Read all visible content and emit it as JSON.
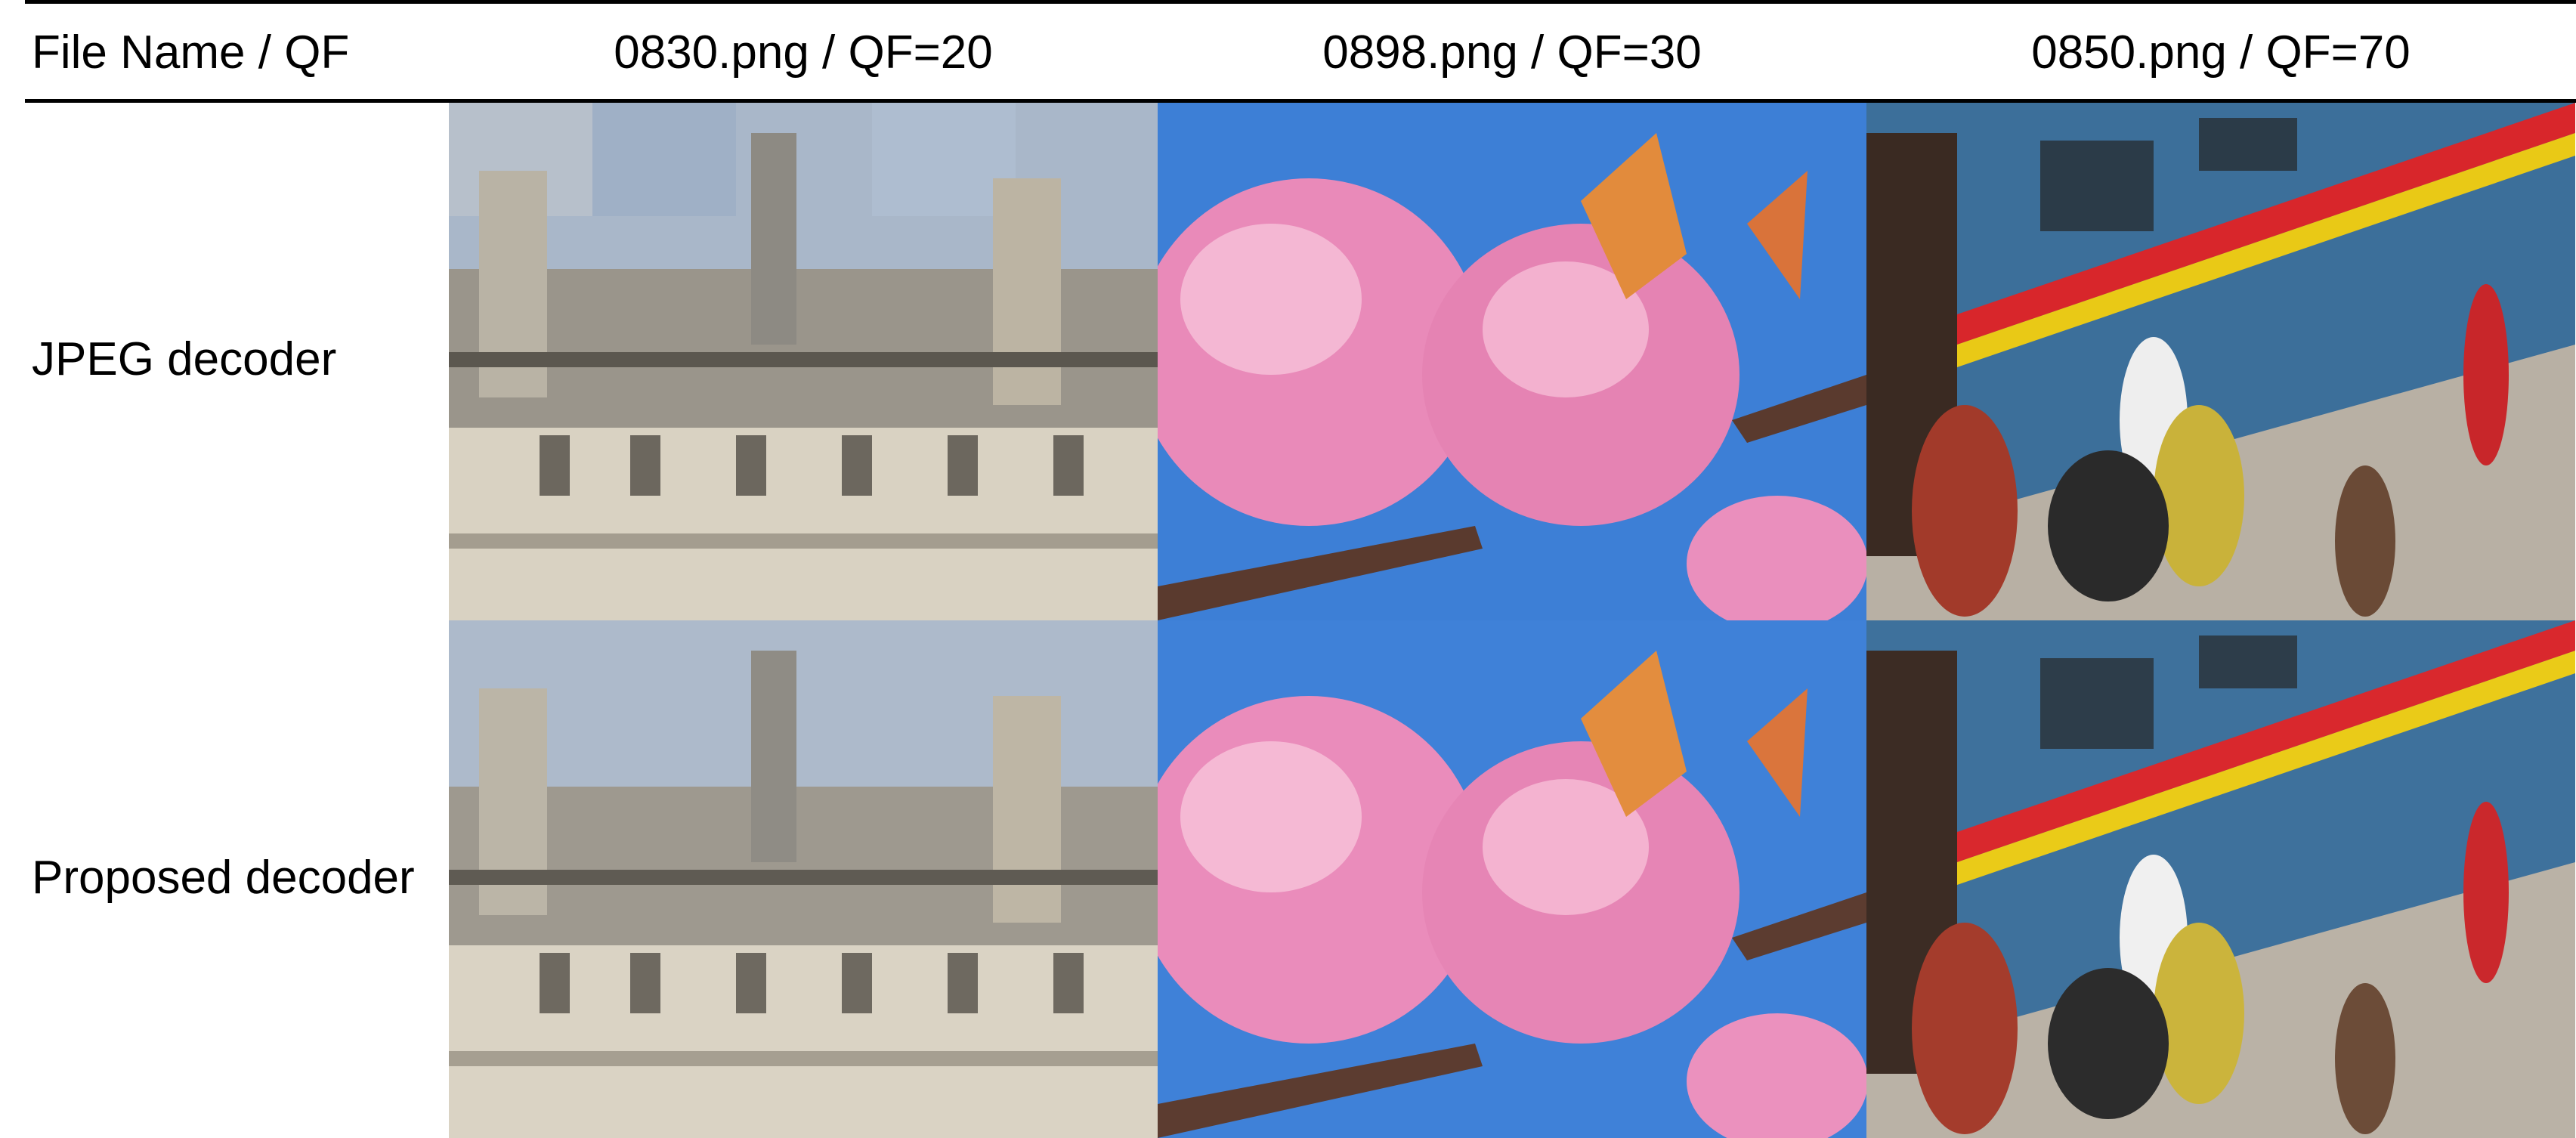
{
  "table": {
    "header": {
      "first": "File Name / QF",
      "columns": [
        "0830.png / QF=20",
        "0898.png / QF=30",
        "0850.png / QF=70"
      ]
    },
    "rows": [
      {
        "label": "JPEG decoder"
      },
      {
        "label": "Proposed decoder"
      }
    ]
  },
  "images": {
    "castle": {
      "icon": "castle-photo",
      "sky": "#a9b7c9",
      "stone": "#c9c1ae"
    },
    "blossom": {
      "icon": "cherry-blossom-photo",
      "sky": "#3d7fd6",
      "flower": "#e583b3"
    },
    "train": {
      "icon": "train-platform-photo",
      "body": "#3c6f9a",
      "stripe_red": "#d8262b",
      "stripe_yellow": "#e9c916"
    }
  }
}
